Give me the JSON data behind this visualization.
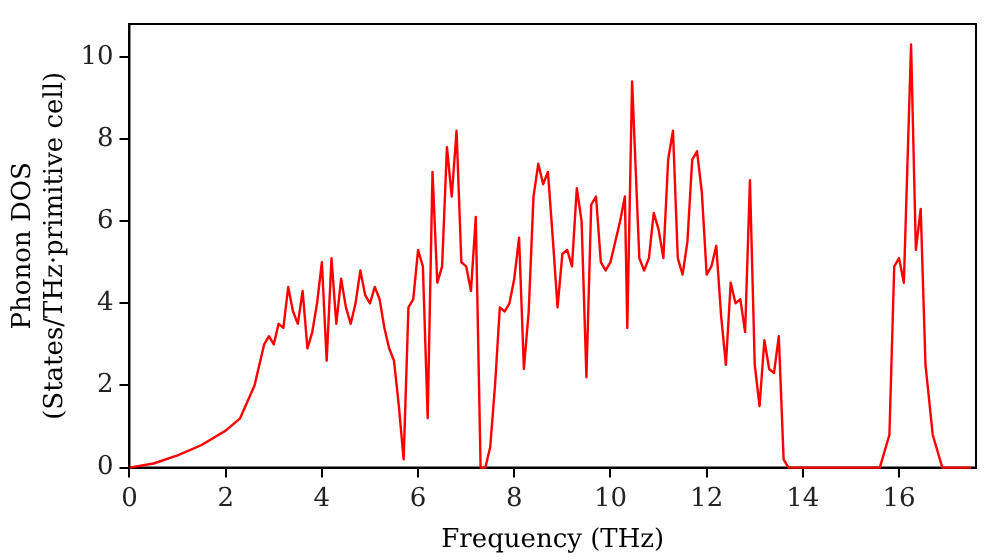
{
  "chart_data": {
    "type": "line",
    "xlabel": "Frequency (THz)",
    "ylabel": "Phonon DOS\n(States/THz·primitive cell)",
    "xlim": [
      0,
      17.6
    ],
    "ylim": [
      0,
      10.8
    ],
    "xticks": [
      0,
      2,
      4,
      6,
      8,
      10,
      12,
      14,
      16
    ],
    "yticks": [
      0,
      2,
      4,
      6,
      8,
      10
    ],
    "grid": false,
    "legend": false,
    "marker": "none",
    "line_style": "solid",
    "series": [
      {
        "color": "#ff0000",
        "x": [
          0,
          0.5,
          1,
          1.5,
          2,
          2.3,
          2.6,
          2.8,
          2.9,
          3.0,
          3.1,
          3.2,
          3.3,
          3.4,
          3.5,
          3.6,
          3.7,
          3.8,
          3.9,
          4.0,
          4.1,
          4.2,
          4.3,
          4.4,
          4.5,
          4.6,
          4.7,
          4.8,
          4.9,
          5.0,
          5.1,
          5.2,
          5.3,
          5.4,
          5.5,
          5.6,
          5.7,
          5.8,
          5.9,
          6.0,
          6.1,
          6.2,
          6.3,
          6.4,
          6.5,
          6.6,
          6.7,
          6.8,
          6.9,
          7.0,
          7.1,
          7.2,
          7.3,
          7.4,
          7.5,
          7.6,
          7.7,
          7.8,
          7.9,
          8.0,
          8.1,
          8.2,
          8.3,
          8.4,
          8.5,
          8.6,
          8.7,
          8.8,
          8.9,
          9.0,
          9.1,
          9.2,
          9.3,
          9.4,
          9.5,
          9.6,
          9.7,
          9.8,
          9.9,
          10.0,
          10.1,
          10.2,
          10.3,
          10.35,
          10.45,
          10.6,
          10.7,
          10.8,
          10.9,
          11.0,
          11.1,
          11.2,
          11.3,
          11.4,
          11.5,
          11.6,
          11.7,
          11.8,
          11.9,
          12.0,
          12.1,
          12.2,
          12.3,
          12.4,
          12.5,
          12.6,
          12.7,
          12.8,
          12.9,
          13.0,
          13.1,
          13.2,
          13.3,
          13.4,
          13.5,
          13.6,
          13.7,
          15.6,
          15.8,
          15.9,
          16.0,
          16.1,
          16.25,
          16.35,
          16.45,
          16.55,
          16.7,
          16.9,
          17.5
        ],
        "values": [
          0,
          0.1,
          0.3,
          0.55,
          0.9,
          1.2,
          2.0,
          3.0,
          3.2,
          3.0,
          3.5,
          3.4,
          4.4,
          3.8,
          3.5,
          4.3,
          2.9,
          3.3,
          4.0,
          5.0,
          2.6,
          5.1,
          3.5,
          4.6,
          3.9,
          3.5,
          4.0,
          4.8,
          4.2,
          4.0,
          4.4,
          4.1,
          3.4,
          2.9,
          2.6,
          1.5,
          0.2,
          3.9,
          4.1,
          5.3,
          4.9,
          1.2,
          7.2,
          4.5,
          4.9,
          7.8,
          6.6,
          8.2,
          5.0,
          4.9,
          4.3,
          6.1,
          0,
          0,
          0.5,
          2.0,
          3.9,
          3.8,
          4.0,
          4.6,
          5.6,
          2.4,
          3.8,
          6.6,
          7.4,
          6.9,
          7.2,
          5.6,
          3.9,
          5.2,
          5.3,
          4.9,
          6.8,
          6.0,
          2.2,
          6.4,
          6.6,
          5.0,
          4.8,
          5.0,
          5.5,
          6.0,
          6.6,
          3.4,
          9.4,
          5.1,
          4.8,
          5.1,
          6.2,
          5.8,
          5.1,
          7.5,
          8.2,
          5.1,
          4.7,
          5.5,
          7.5,
          7.7,
          6.7,
          4.7,
          4.9,
          5.4,
          3.7,
          2.5,
          4.5,
          4.0,
          4.1,
          3.3,
          7.0,
          2.5,
          1.5,
          3.1,
          2.4,
          2.3,
          3.2,
          0.2,
          0,
          0,
          0.8,
          4.9,
          5.1,
          4.5,
          10.3,
          5.3,
          6.3,
          2.5,
          0.8,
          0,
          0
        ]
      }
    ]
  }
}
